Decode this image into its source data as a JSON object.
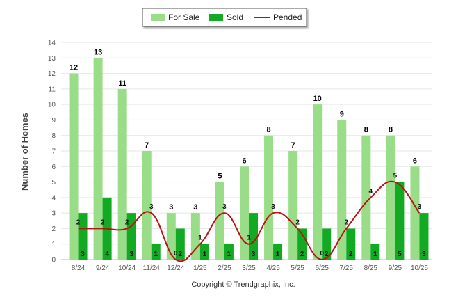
{
  "chart_data": {
    "type": "bar",
    "categories": [
      "8/24",
      "9/24",
      "10/24",
      "11/24",
      "12/24",
      "1/25",
      "2/25",
      "3/25",
      "4/25",
      "5/25",
      "6/25",
      "7/25",
      "8/25",
      "9/25",
      "10/25"
    ],
    "series": [
      {
        "name": "For Sale",
        "type": "bar",
        "color": "#99dd88",
        "values": [
          12,
          13,
          11,
          7,
          3,
          3,
          5,
          6,
          8,
          7,
          10,
          9,
          8,
          8,
          6
        ]
      },
      {
        "name": "Sold",
        "type": "bar",
        "color": "#11aa22",
        "values": [
          3,
          4,
          3,
          1,
          2,
          1,
          1,
          3,
          1,
          2,
          2,
          2,
          1,
          5,
          3
        ]
      },
      {
        "name": "Pended",
        "type": "line",
        "color": "#bb1111",
        "values": [
          2,
          2,
          2,
          3,
          0,
          1,
          3,
          1,
          3,
          2,
          0,
          2,
          4,
          5,
          3
        ]
      }
    ],
    "title": "",
    "xlabel": "",
    "ylabel": "Number of Homes",
    "ylim": [
      0,
      14
    ],
    "yticks": [
      0,
      1,
      2,
      3,
      4,
      5,
      6,
      7,
      8,
      9,
      10,
      11,
      12,
      13,
      14
    ],
    "grid": true,
    "legend": "top-center"
  },
  "footer": {
    "copyright": "Copyright © Trendgraphix, Inc."
  }
}
